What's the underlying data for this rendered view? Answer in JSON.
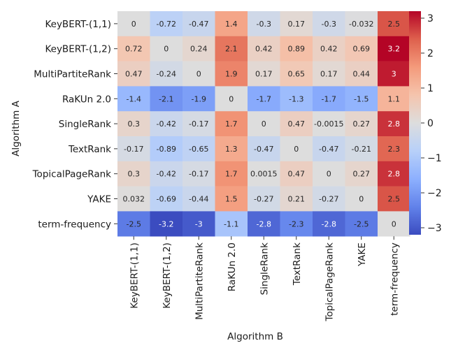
{
  "chart_data": {
    "type": "heatmap",
    "xlabel": "Algorithm B",
    "ylabel": "Algorithm A",
    "rows": [
      "KeyBERT-(1,1)",
      "KeyBERT-(1,2)",
      "MultiPartiteRank",
      "RaKUn 2.0",
      "SingleRank",
      "TextRank",
      "TopicalPageRank",
      "YAKE",
      "term-frequency"
    ],
    "columns": [
      "KeyBERT-(1,1)",
      "KeyBERT-(1,2)",
      "MultiPartiteRank",
      "RaKUn 2.0",
      "SingleRank",
      "TextRank",
      "TopicalPageRank",
      "YAKE",
      "term-frequency"
    ],
    "values": [
      [
        0,
        -0.72,
        -0.47,
        1.4,
        -0.3,
        0.17,
        -0.3,
        -0.032,
        2.5
      ],
      [
        0.72,
        0,
        0.24,
        2.1,
        0.42,
        0.89,
        0.42,
        0.69,
        3.2
      ],
      [
        0.47,
        -0.24,
        0,
        1.9,
        0.17,
        0.65,
        0.17,
        0.44,
        3
      ],
      [
        -1.4,
        -2.1,
        -1.9,
        0,
        -1.7,
        -1.3,
        -1.7,
        -1.5,
        1.1
      ],
      [
        0.3,
        -0.42,
        -0.17,
        1.7,
        0,
        0.47,
        -0.0015,
        0.27,
        2.8
      ],
      [
        -0.17,
        -0.89,
        -0.65,
        1.3,
        -0.47,
        0,
        -0.47,
        -0.21,
        2.3
      ],
      [
        0.3,
        -0.42,
        -0.17,
        1.7,
        0.0015,
        0.47,
        0,
        0.27,
        2.8
      ],
      [
        0.032,
        -0.69,
        -0.44,
        1.5,
        -0.27,
        0.21,
        -0.27,
        0,
        2.5
      ],
      [
        -2.5,
        -3.2,
        -3,
        -1.1,
        -2.8,
        -2.3,
        -2.8,
        -2.5,
        0
      ]
    ],
    "value_labels": [
      [
        "0",
        "-0.72",
        "-0.47",
        "1.4",
        "-0.3",
        "0.17",
        "-0.3",
        "-0.032",
        "2.5"
      ],
      [
        "0.72",
        "0",
        "0.24",
        "2.1",
        "0.42",
        "0.89",
        "0.42",
        "0.69",
        "3.2"
      ],
      [
        "0.47",
        "-0.24",
        "0",
        "1.9",
        "0.17",
        "0.65",
        "0.17",
        "0.44",
        "3"
      ],
      [
        "-1.4",
        "-2.1",
        "-1.9",
        "0",
        "-1.7",
        "-1.3",
        "-1.7",
        "-1.5",
        "1.1"
      ],
      [
        "0.3",
        "-0.42",
        "-0.17",
        "1.7",
        "0",
        "0.47",
        "-0.0015",
        "0.27",
        "2.8"
      ],
      [
        "-0.17",
        "-0.89",
        "-0.65",
        "1.3",
        "-0.47",
        "0",
        "-0.47",
        "-0.21",
        "2.3"
      ],
      [
        "0.3",
        "-0.42",
        "-0.17",
        "1.7",
        "0.0015",
        "0.47",
        "0",
        "0.27",
        "2.8"
      ],
      [
        "0.032",
        "-0.69",
        "-0.44",
        "1.5",
        "-0.27",
        "0.21",
        "-0.27",
        "0",
        "2.5"
      ],
      [
        "-2.5",
        "-3.2",
        "-3",
        "-1.1",
        "-2.8",
        "-2.3",
        "-2.8",
        "-2.5",
        "0"
      ]
    ],
    "colormap": "coolwarm",
    "vmin": -3.2,
    "vmax": 3.2,
    "colorbar": {
      "ticks": [
        3,
        2,
        1,
        0,
        -1,
        -2,
        -3
      ],
      "tick_labels": [
        "3",
        "2",
        "1",
        "0",
        "−1",
        "−2",
        "−3"
      ]
    }
  }
}
